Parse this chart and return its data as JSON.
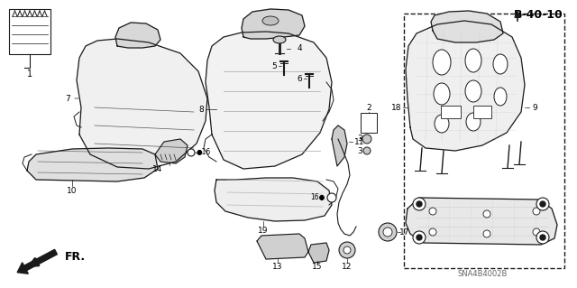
{
  "background_color": "#ffffff",
  "fig_width": 6.4,
  "fig_height": 3.19,
  "dpi": 100,
  "text_color": "#000000",
  "gray_fill": "#e8e8e8",
  "dark_gray": "#c0c0c0",
  "line_color": "#1a1a1a",
  "label_fontsize": 6.5,
  "bold_fontsize": 8.5,
  "watermark_text": "SNA4B4002B",
  "page_ref": "B-40-10"
}
